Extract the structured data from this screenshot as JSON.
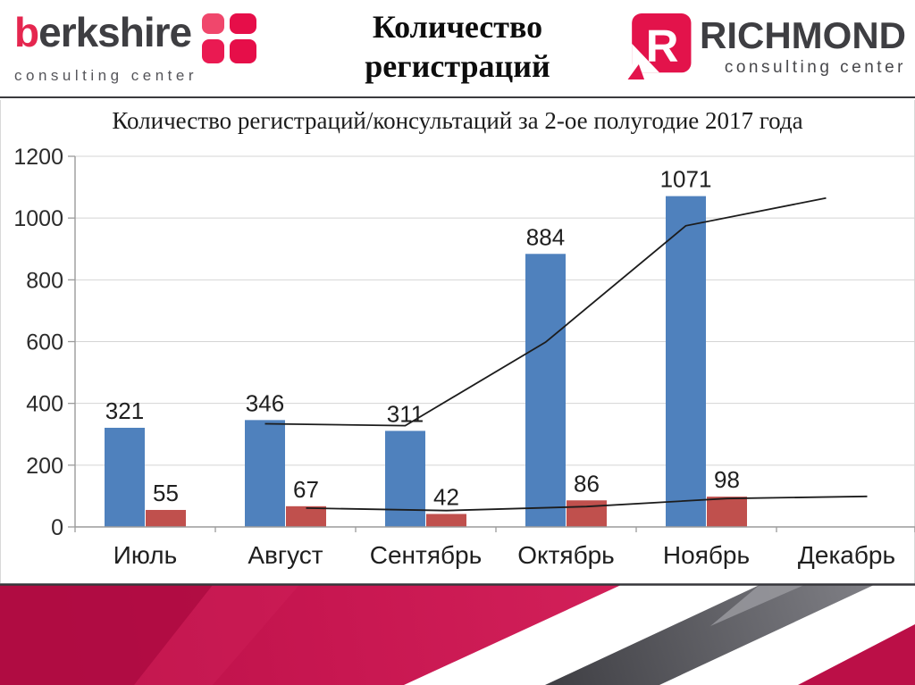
{
  "header": {
    "slide_title_line1": "Количество",
    "slide_title_line2": "регистраций",
    "logo_left": {
      "brand_initial": "b",
      "brand_rest": "erkshire",
      "subtitle": "consulting center"
    },
    "logo_right": {
      "brand": "RICHMOND",
      "r_glyph": "R",
      "subtitle": "consulting center"
    }
  },
  "chart_data": {
    "type": "bar",
    "title": "Количество регистраций/консультаций за 2-ое полугодие 2017 года",
    "categories": [
      "Июль",
      "Август",
      "Сентябрь",
      "Октябрь",
      "Ноябрь",
      "Декабрь"
    ],
    "series": [
      {
        "name": "registrations-bars",
        "type": "bar",
        "color": "#4F81BD",
        "values": [
          321,
          346,
          311,
          884,
          1071,
          null
        ],
        "data_labels": true
      },
      {
        "name": "consultations-bars",
        "type": "bar",
        "color": "#C0504D",
        "values": [
          55,
          67,
          42,
          86,
          98,
          null
        ],
        "data_labels": true
      },
      {
        "name": "trend-line-upper",
        "type": "line",
        "color": "#1c1c1c",
        "anchor": "blue",
        "values": [
          null,
          334,
          328,
          598,
          975,
          1065
        ]
      },
      {
        "name": "trend-line-lower",
        "type": "line",
        "color": "#1c1c1c",
        "anchor": "red",
        "values": [
          null,
          61,
          53,
          66,
          92,
          99
        ]
      }
    ],
    "ylim": [
      0,
      1200
    ],
    "ytick_step": 200,
    "grid": true,
    "legend_position": "none"
  },
  "colors": {
    "bar_blue": "#4F81BD",
    "bar_red": "#C0504D",
    "brand_crimson": "#C81751",
    "logo_red": "#E5264F",
    "logo_text_gray": "#3E3E42",
    "footer_gray_dark": "#3E3E43",
    "footer_gray_light": "#808086"
  }
}
